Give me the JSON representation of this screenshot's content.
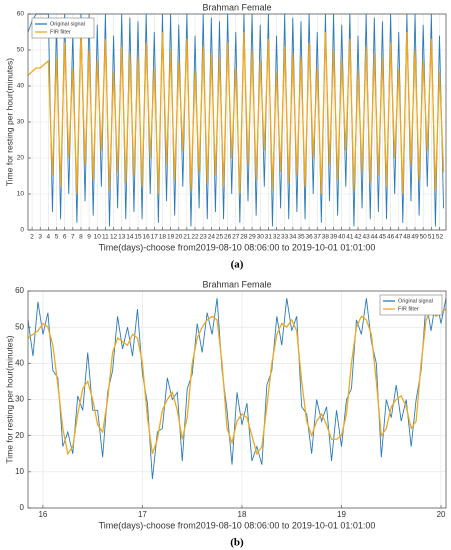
{
  "chart_data": [
    {
      "type": "line",
      "title": "Brahman Female",
      "caption": "(a)",
      "xlabel": "Time(days)-choose from2019-08-10 08:06:00 to 2019-10-01 01:01:00",
      "ylabel": "Time for resting per hour(minutes)",
      "legend": "upper left",
      "grid": true,
      "xlim": [
        1.5,
        52.8
      ],
      "ylim": [
        0,
        60
      ],
      "xticks": [
        2,
        3,
        4,
        5,
        6,
        7,
        8,
        9,
        10,
        11,
        12,
        13,
        14,
        15,
        16,
        17,
        18,
        19,
        20,
        21,
        22,
        23,
        24,
        25,
        26,
        27,
        28,
        29,
        30,
        31,
        32,
        33,
        34,
        35,
        36,
        37,
        38,
        39,
        40,
        41,
        42,
        43,
        44,
        45,
        46,
        47,
        48,
        49,
        50,
        51,
        52
      ],
      "yticks": [
        0,
        10,
        20,
        30,
        40,
        50,
        60
      ],
      "x": [
        1.5,
        2,
        2.5,
        3,
        3.5,
        4,
        4.5,
        5,
        5.5,
        6,
        6.5,
        7,
        7.5,
        8,
        8.5,
        9,
        9.5,
        10,
        10.5,
        11,
        11.5,
        12,
        12.5,
        13,
        13.5,
        14,
        14.5,
        15,
        15.5,
        16,
        16.5,
        17,
        17.5,
        18,
        18.5,
        19,
        19.5,
        20,
        20.5,
        21,
        21.5,
        22,
        22.5,
        23,
        23.5,
        24,
        24.5,
        25,
        25.5,
        26,
        26.5,
        27,
        27.5,
        28,
        28.5,
        29,
        29.5,
        30,
        30.5,
        31,
        31.5,
        32,
        32.5,
        33,
        33.5,
        34,
        34.5,
        35,
        35.5,
        36,
        36.5,
        37,
        37.5,
        38,
        38.5,
        39,
        39.5,
        40,
        40.5,
        41,
        41.5,
        42,
        42.5,
        43,
        43.5,
        44,
        44.5,
        45,
        45.5,
        46,
        46.5,
        47,
        47.5,
        48,
        48.5,
        49,
        49.5,
        50,
        50.5,
        51,
        51.5,
        52,
        52.5
      ],
      "series": [
        {
          "name": "Original signal",
          "color": "#2b7bba",
          "values": [
            55,
            58,
            60,
            60,
            60,
            60,
            5,
            58,
            3,
            60,
            10,
            55,
            2,
            60,
            8,
            60,
            4,
            57,
            12,
            60,
            1,
            54,
            6,
            60,
            3,
            59,
            5,
            58,
            3,
            60,
            10,
            55,
            2,
            60,
            8,
            60,
            4,
            57,
            12,
            60,
            1,
            54,
            6,
            60,
            3,
            59,
            5,
            58,
            3,
            60,
            10,
            55,
            2,
            60,
            8,
            60,
            4,
            57,
            12,
            60,
            1,
            54,
            6,
            60,
            3,
            59,
            5,
            58,
            3,
            60,
            10,
            55,
            2,
            60,
            8,
            60,
            4,
            57,
            12,
            60,
            1,
            54,
            6,
            60,
            3,
            59,
            5,
            58,
            3,
            60,
            10,
            55,
            2,
            60,
            8,
            60,
            4,
            57,
            12,
            60,
            1,
            54,
            6
          ]
        },
        {
          "name": "FIR filter",
          "color": "#f0a81e",
          "values": [
            43,
            44,
            45,
            45,
            46,
            47,
            15,
            48,
            12,
            52,
            20,
            45,
            10,
            55,
            18,
            50,
            14,
            47,
            22,
            53,
            11,
            44,
            16,
            51,
            13,
            49,
            15,
            48,
            12,
            52,
            20,
            45,
            10,
            55,
            18,
            50,
            14,
            47,
            22,
            53,
            11,
            44,
            16,
            51,
            13,
            49,
            15,
            48,
            12,
            52,
            20,
            45,
            10,
            55,
            18,
            50,
            14,
            47,
            22,
            53,
            11,
            44,
            16,
            51,
            13,
            49,
            15,
            48,
            12,
            52,
            20,
            45,
            10,
            55,
            18,
            50,
            14,
            47,
            22,
            53,
            11,
            44,
            16,
            51,
            13,
            49,
            15,
            48,
            12,
            52,
            20,
            45,
            10,
            55,
            18,
            50,
            14,
            47,
            22,
            53,
            11,
            44,
            16
          ]
        }
      ]
    },
    {
      "type": "line",
      "title": "Brahman Female",
      "caption": "(b)",
      "xlabel": "Time(days)-choose from2019-08-10 08:06:00 to 2019-10-01 01:01:00",
      "ylabel": "Time for resting per hour(minutes)",
      "legend": "upper right",
      "grid": true,
      "xlim": [
        15.85,
        20.05
      ],
      "ylim": [
        0,
        60
      ],
      "xticks": [
        16,
        17,
        18,
        19,
        20
      ],
      "yticks": [
        0,
        10,
        20,
        30,
        40,
        50,
        60
      ],
      "x": [
        15.85,
        15.9,
        15.95,
        16,
        16.05,
        16.1,
        16.15,
        16.2,
        16.25,
        16.3,
        16.35,
        16.4,
        16.45,
        16.5,
        16.55,
        16.6,
        16.65,
        16.7,
        16.75,
        16.8,
        16.85,
        16.9,
        16.95,
        17,
        17.05,
        17.1,
        17.15,
        17.2,
        17.25,
        17.3,
        17.35,
        17.4,
        17.45,
        17.5,
        17.55,
        17.6,
        17.65,
        17.7,
        17.75,
        17.8,
        17.85,
        17.9,
        17.95,
        18,
        18.05,
        18.1,
        18.15,
        18.2,
        18.25,
        18.3,
        18.35,
        18.4,
        18.45,
        18.5,
        18.55,
        18.6,
        18.65,
        18.7,
        18.75,
        18.8,
        18.85,
        18.9,
        18.95,
        19,
        19.05,
        19.1,
        19.15,
        19.2,
        19.25,
        19.3,
        19.35,
        19.4,
        19.45,
        19.5,
        19.55,
        19.6,
        19.65,
        19.7,
        19.75,
        19.8,
        19.85,
        19.9,
        19.95,
        20,
        20.05
      ],
      "series": [
        {
          "name": "Original signal",
          "color": "#2b7bba",
          "values": [
            52,
            42,
            57,
            48,
            54,
            38,
            36,
            17,
            21,
            15,
            31,
            27,
            43,
            27,
            27,
            14,
            32,
            38,
            53,
            44,
            50,
            42,
            55,
            37,
            29,
            8,
            21,
            22,
            36,
            30,
            32,
            13,
            33,
            37,
            51,
            43,
            54,
            48,
            58,
            38,
            27,
            12,
            32,
            23,
            29,
            13,
            17,
            12,
            34,
            38,
            53,
            45,
            58,
            49,
            53,
            28,
            26,
            15,
            30,
            24,
            28,
            13,
            27,
            17,
            30,
            33,
            52,
            48,
            58,
            46,
            40,
            14,
            30,
            25,
            34,
            24,
            30,
            17,
            30,
            38,
            57,
            49,
            58,
            51,
            58
          ]
        },
        {
          "name": "FIR filter",
          "color": "#f0a81e",
          "values": [
            47,
            48,
            49,
            51,
            50,
            45,
            34,
            22,
            15,
            17,
            26,
            33,
            35,
            30,
            23,
            21,
            30,
            43,
            47,
            46,
            45,
            48,
            47,
            40,
            25,
            15,
            19,
            27,
            30,
            32,
            27,
            19,
            25,
            40,
            47,
            50,
            52,
            53,
            52,
            40,
            22,
            18,
            24,
            26,
            25,
            20,
            15,
            17,
            28,
            40,
            48,
            51,
            50,
            52,
            49,
            35,
            24,
            20,
            24,
            26,
            23,
            19,
            19,
            20,
            26,
            40,
            50,
            53,
            52,
            48,
            35,
            20,
            22,
            28,
            30,
            31,
            28,
            22,
            24,
            40,
            52,
            55,
            53,
            54,
            55
          ]
        }
      ]
    }
  ]
}
